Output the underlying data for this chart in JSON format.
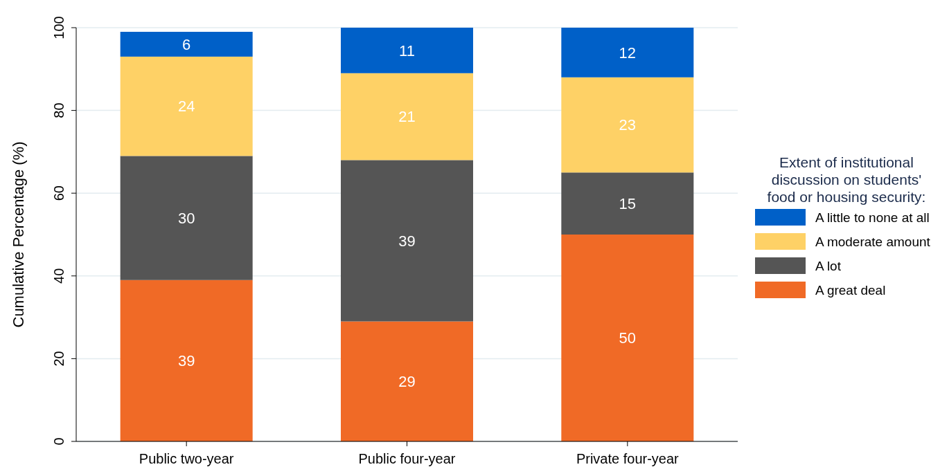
{
  "chart_data": {
    "type": "bar",
    "stacked": true,
    "ylabel": "Cumulative Percentage (%)",
    "legend_title": "Extent of institutional discussion on students' food or housing security:",
    "categories": [
      "Public two-year",
      "Public four-year",
      "Private four-year"
    ],
    "series": [
      {
        "name": "A great deal",
        "color": "#f06a26",
        "values": [
          39,
          29,
          50
        ]
      },
      {
        "name": "A lot",
        "color": "#555555",
        "values": [
          30,
          39,
          15
        ]
      },
      {
        "name": "A moderate amount",
        "color": "#fed166",
        "values": [
          24,
          21,
          23
        ]
      },
      {
        "name": "A little to none at all",
        "color": "#0060c8",
        "values": [
          6,
          11,
          12
        ]
      }
    ],
    "ylim": [
      0,
      100
    ],
    "yticks": [
      0,
      20,
      40,
      60,
      80,
      100
    ],
    "grid": "y",
    "legend": "right",
    "data_labels": true
  }
}
